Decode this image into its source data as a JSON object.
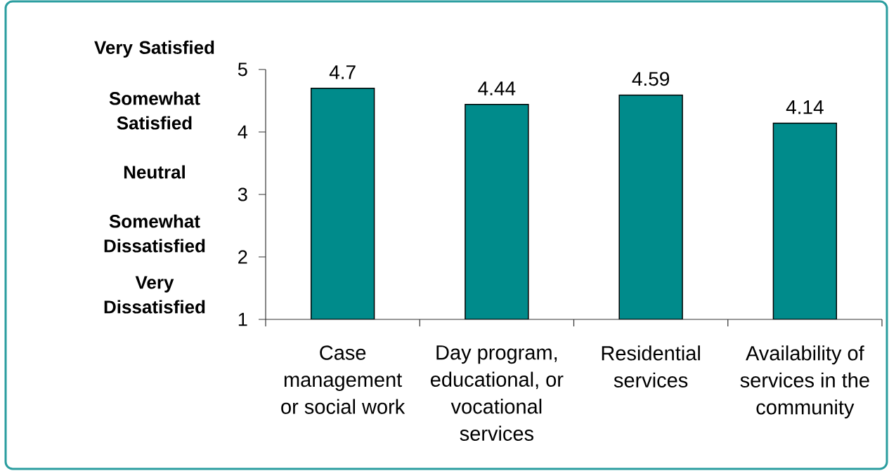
{
  "chart_data": {
    "type": "bar",
    "categories": [
      "Case management or social work",
      "Day program, educational, or vocational services",
      "Residential services",
      "Availability of services in the community"
    ],
    "values": [
      4.7,
      4.44,
      4.59,
      4.14
    ],
    "color": "#008b8b",
    "ylim": [
      1,
      5
    ],
    "yticks": [
      1,
      2,
      3,
      4,
      5
    ],
    "data_labels": true,
    "annotations": [
      "Very Satisfied",
      "Somewhat Satisfied",
      "Neutral",
      "Somewhat Dissatisfied",
      "Very Dissatisfied"
    ]
  }
}
